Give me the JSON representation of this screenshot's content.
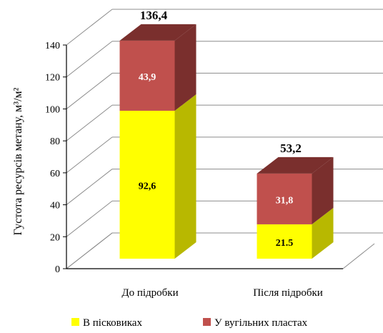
{
  "chart_data": {
    "type": "bar",
    "stacked": true,
    "three_d": true,
    "categories": [
      "До підробки",
      "Після підробки"
    ],
    "series": [
      {
        "name": "В пісковиках",
        "values": [
          92.6,
          21.5
        ],
        "value_labels": [
          "92,6",
          "21.5"
        ],
        "color": "#FFFF00",
        "side_color": "#B8B800",
        "label_color": "#000000"
      },
      {
        "name": "У вугільних пластах",
        "values": [
          43.9,
          31.8
        ],
        "value_labels": [
          "43,9",
          "31,8"
        ],
        "color": "#C0504D",
        "side_color": "#7A2F2D",
        "label_color": "#FFFFFF"
      }
    ],
    "totals": [
      "136,4",
      "53,2"
    ],
    "ylabel": "Густота ресурсів метану, м³/м²",
    "ylim": [
      0,
      140
    ],
    "yticks": [
      0,
      20,
      40,
      60,
      80,
      100,
      120,
      140
    ],
    "grid": true,
    "legend_position": "bottom"
  }
}
